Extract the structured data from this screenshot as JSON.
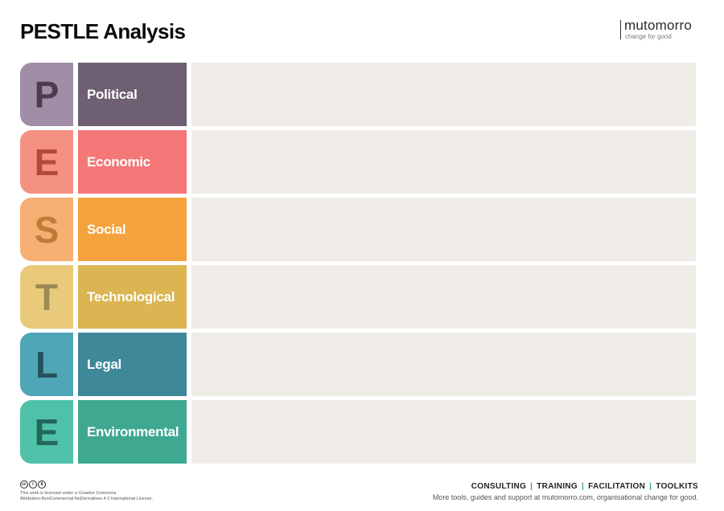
{
  "title": "PESTLE Analysis",
  "brand": {
    "name": "mutomorro",
    "tagline": "change for good"
  },
  "rows": [
    {
      "letter": "P",
      "label": "Political",
      "letter_bg": "#a18ea6",
      "letter_color": "#4a3d50",
      "label_bg": "#6e5f72"
    },
    {
      "letter": "E",
      "label": "Economic",
      "letter_bg": "#f49183",
      "letter_color": "#b5473d",
      "label_bg": "#f37877"
    },
    {
      "letter": "S",
      "label": "Social",
      "letter_bg": "#f7ae73",
      "letter_color": "#c07a34",
      "label_bg": "#f4a23d"
    },
    {
      "letter": "T",
      "label": "Technological",
      "letter_bg": "#e9c97a",
      "letter_color": "#9c8a52",
      "label_bg": "#dbb551"
    },
    {
      "letter": "L",
      "label": "Legal",
      "letter_bg": "#4ea6b7",
      "letter_color": "#24525b",
      "label_bg": "#3f8899"
    },
    {
      "letter": "E",
      "label": "Environmental",
      "letter_bg": "#4fc1a9",
      "letter_color": "#22685a",
      "label_bg": "#3fa891"
    }
  ],
  "license": {
    "icons": [
      "cc",
      "by",
      "nc"
    ],
    "line1": "This work is licensed under a Creative Commons",
    "line2": "Attribution-NonCommercial-NoDerivatives 4.0 International License."
  },
  "footer": {
    "links": [
      "CONSULTING",
      "TRAINING",
      "FACILITATION",
      "TOOLKITS"
    ],
    "separator": "|",
    "text": "More tools, guides and support at mutomorro.com, organisational change for good."
  }
}
